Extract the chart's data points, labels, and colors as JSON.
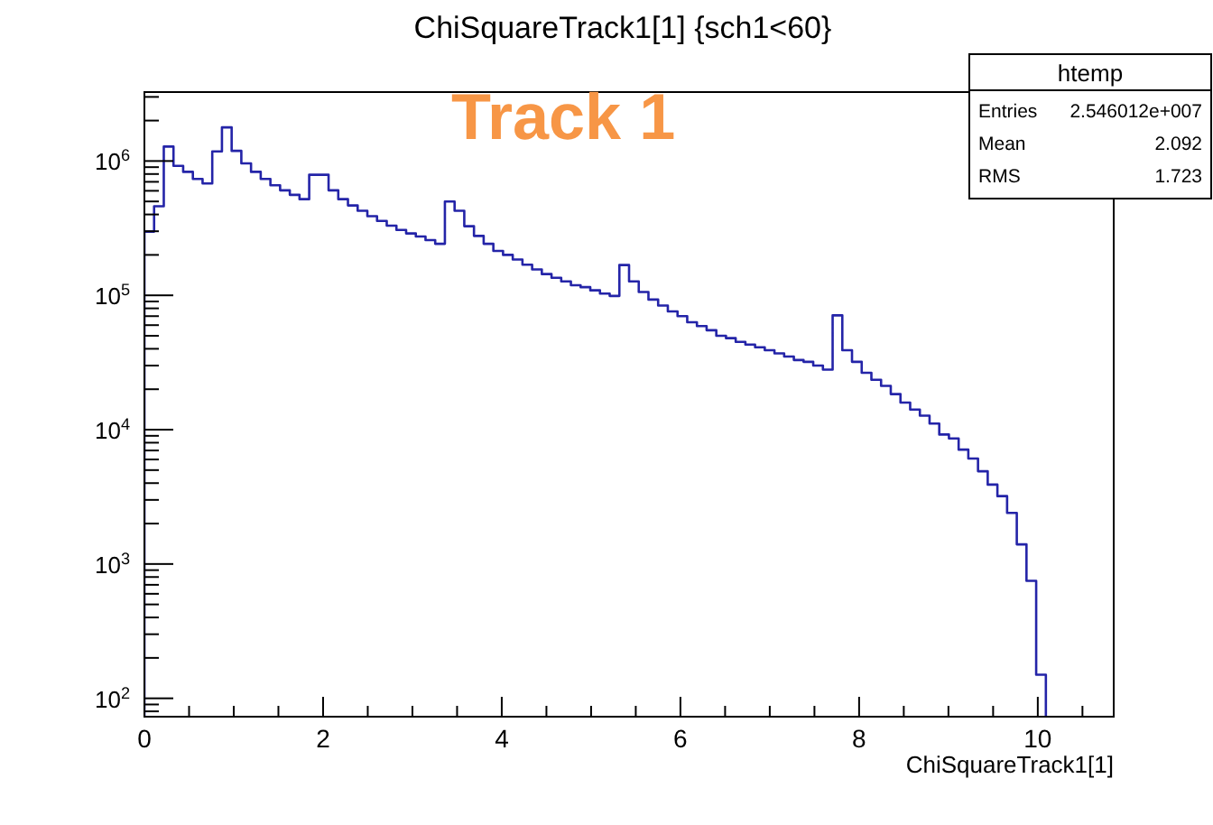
{
  "chart_data": {
    "type": "histogram",
    "title": "ChiSquareTrack1[1] {sch1<60}",
    "xlabel": "ChiSquareTrack1[1]",
    "annotations": [
      "Track 1",
      "htemp",
      "Entries",
      "2.546012e+007",
      "Mean",
      "2.092",
      "RMS",
      "1.723"
    ],
    "grid": false,
    "log": "y",
    "color": "#2424a8",
    "bins": [
      0,
      0.1085,
      0.217,
      0.3255,
      0.434,
      0.5425,
      0.651,
      0.7595,
      0.868,
      0.9765,
      1.085,
      1.1935,
      1.302,
      1.4105,
      1.519,
      1.6275,
      1.736,
      1.8445,
      1.953,
      2.0615,
      2.17,
      2.2785,
      2.387,
      2.4955,
      2.604,
      2.7125,
      2.821,
      2.9295,
      3.038,
      3.1465,
      3.255,
      3.3635,
      3.472,
      3.5805,
      3.689,
      3.7975,
      3.906,
      4.0145,
      4.123,
      4.2315,
      4.34,
      4.4485,
      4.557,
      4.6655,
      4.774,
      4.8825,
      4.991,
      5.0995,
      5.208,
      5.3165,
      5.425,
      5.5335,
      5.642,
      5.7505,
      5.859,
      5.9675,
      6.076,
      6.1845,
      6.293,
      6.4015,
      6.51,
      6.6185,
      6.727,
      6.8355,
      6.944,
      7.0525,
      7.161,
      7.2695,
      7.378,
      7.4865,
      7.595,
      7.7035,
      7.812,
      7.9205,
      8.029,
      8.1375,
      8.246,
      8.3545,
      8.463,
      8.5715,
      8.68,
      8.7885,
      8.897,
      9.0055,
      9.114,
      9.2225,
      9.331,
      9.4395,
      9.548,
      9.6565,
      9.765,
      9.8735,
      9.982,
      10.0905
    ],
    "values": [
      298000,
      460000,
      1280000,
      920000,
      830000,
      735000,
      680000,
      1180000,
      1780000,
      1190000,
      960000,
      830000,
      735000,
      660000,
      605000,
      560000,
      520000,
      790000,
      790000,
      605000,
      520000,
      467000,
      426000,
      388000,
      358000,
      330000,
      307000,
      289000,
      274000,
      258000,
      242000,
      500000,
      426000,
      327000,
      277000,
      242000,
      214000,
      200000,
      185000,
      169000,
      156000,
      144000,
      135000,
      127000,
      119000,
      115000,
      109000,
      103000,
      99000,
      168000,
      127000,
      106000,
      93000,
      84000,
      76000,
      70000,
      63000,
      59000,
      55000,
      50000,
      48000,
      45000,
      43000,
      41000,
      39000,
      37000,
      35000,
      33000,
      32000,
      30000,
      28000,
      71000,
      39000,
      32000,
      26500,
      23500,
      21200,
      18400,
      15900,
      14100,
      12700,
      11100,
      9200,
      8600,
      7100,
      6100,
      4900,
      3900,
      3200,
      2400,
      1400,
      750,
      150
    ],
    "xlim": [
      0,
      10.85
    ],
    "xticks": [
      0,
      {
        "value": 0.5,
        "label": null
      },
      {
        "value": 1,
        "label": null
      },
      {
        "value": 1.5,
        "label": null
      },
      2,
      {
        "value": 2.5,
        "label": null
      },
      {
        "value": 3,
        "label": null
      },
      {
        "value": 3.5,
        "label": null
      },
      4,
      {
        "value": 4.5,
        "label": null
      },
      {
        "value": 5,
        "label": null
      },
      {
        "value": 5.5,
        "label": null
      },
      6,
      {
        "value": 6.5,
        "label": null
      },
      {
        "value": 7,
        "label": null
      },
      {
        "value": 7.5,
        "label": null
      },
      8,
      {
        "value": 8.5,
        "label": null
      },
      {
        "value": 9,
        "label": null
      },
      {
        "value": 9.5,
        "label": null
      },
      10,
      {
        "value": 10.5,
        "label": null
      }
    ],
    "ylim": [
      73,
      3260000
    ],
    "yticks": [
      {
        "value": 80,
        "label": null
      },
      {
        "value": 90,
        "label": null
      },
      {
        "value": 100,
        "label": "10$^{2}$"
      },
      {
        "value": 200,
        "label": null
      },
      {
        "value": 300,
        "label": null
      },
      {
        "value": 400,
        "label": null
      },
      {
        "value": 500,
        "label": null
      },
      {
        "value": 600,
        "label": null
      },
      {
        "value": 700,
        "label": null
      },
      {
        "value": 800,
        "label": null
      },
      {
        "value": 900,
        "label": null
      },
      {
        "value": 1000,
        "label": "10$^{3}$"
      },
      {
        "value": 2000,
        "label": null
      },
      {
        "value": 3000,
        "label": null
      },
      {
        "value": 4000,
        "label": null
      },
      {
        "value": 5000,
        "label": null
      },
      {
        "value": 6000,
        "label": null
      },
      {
        "value": 7000,
        "label": null
      },
      {
        "value": 8000,
        "label": null
      },
      {
        "value": 9000,
        "label": null
      },
      {
        "value": 10000,
        "label": "10$^{4}$"
      },
      {
        "value": 20000,
        "label": null
      },
      {
        "value": 30000,
        "label": null
      },
      {
        "value": 40000,
        "label": null
      },
      {
        "value": 50000,
        "label": null
      },
      {
        "value": 60000,
        "label": null
      },
      {
        "value": 70000,
        "label": null
      },
      {
        "value": 80000,
        "label": null
      },
      {
        "value": 90000,
        "label": null
      },
      {
        "value": 100000,
        "label": "10$^{5}$"
      },
      {
        "value": 200000,
        "label": null
      },
      {
        "value": 300000,
        "label": null
      },
      {
        "value": 400000,
        "label": null
      },
      {
        "value": 500000,
        "label": null
      },
      {
        "value": 600000,
        "label": null
      },
      {
        "value": 700000,
        "label": null
      },
      {
        "value": 800000,
        "label": null
      },
      {
        "value": 900000,
        "label": null
      },
      {
        "value": 1000000,
        "label": "10$^{6}$"
      },
      {
        "value": 2000000,
        "label": null
      },
      {
        "value": 3000000,
        "label": null
      }
    ]
  }
}
